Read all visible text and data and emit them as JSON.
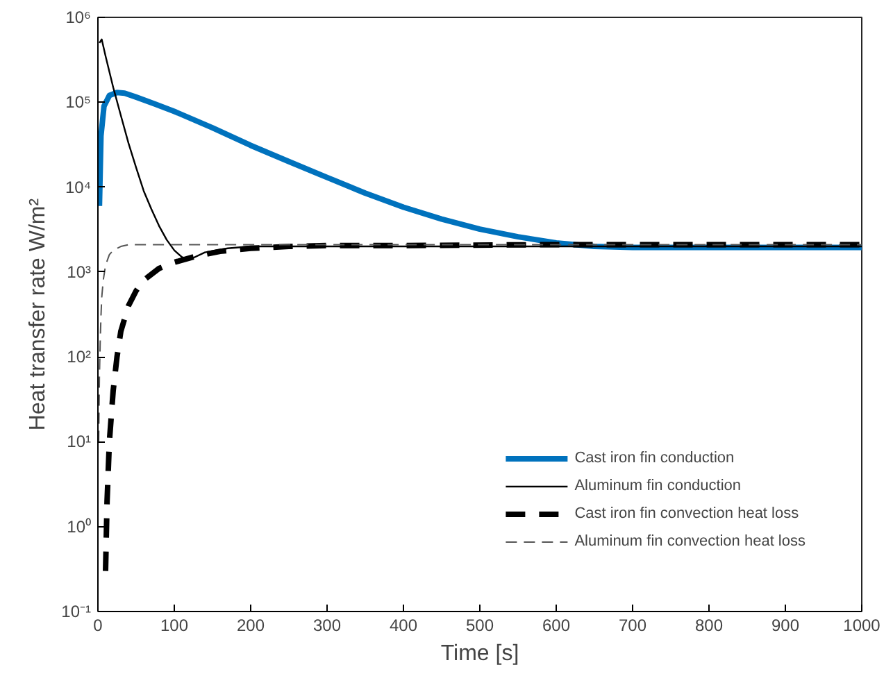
{
  "chart_data": {
    "type": "line",
    "xlabel": "Time [s]",
    "ylabel": "Heat transfer rate W/m²",
    "log": "y",
    "grid": false,
    "legend": "bottom right",
    "xlim": [
      0,
      1000
    ],
    "xticks": [
      0,
      100,
      200,
      300,
      400,
      500,
      600,
      700,
      800,
      900,
      1000
    ],
    "ylim": [
      0.1,
      1000000
    ],
    "yticks": [
      {
        "value": 0.1,
        "label": "10⁻¹"
      },
      {
        "value": 1,
        "label": "10⁰"
      },
      {
        "value": 10,
        "label": "10¹"
      },
      {
        "value": 100,
        "label": "10²"
      },
      {
        "value": 1000,
        "label": "10³"
      },
      {
        "value": 10000,
        "label": "10⁴"
      },
      {
        "value": 100000,
        "label": "10⁵"
      },
      {
        "value": 1000000,
        "label": "10⁶"
      }
    ],
    "series": [
      {
        "name": "Cast iron fin conduction",
        "color": "#0072bd",
        "line_style": "solid",
        "x": [
          2,
          4,
          8,
          15,
          25,
          35,
          50,
          75,
          100,
          150,
          200,
          250,
          300,
          350,
          400,
          450,
          500,
          550,
          600,
          650,
          700,
          800,
          900,
          1000
        ],
        "values": [
          6000,
          40000,
          90000,
          120000,
          130000,
          128000,
          115000,
          95000,
          78000,
          50000,
          31000,
          20000,
          13000,
          8500,
          5800,
          4200,
          3200,
          2600,
          2200,
          2000,
          1950,
          1950,
          1950,
          1950
        ]
      },
      {
        "name": "Aluminum fin conduction",
        "color": "#000000",
        "line_style": "solid",
        "x": [
          2,
          5,
          10,
          20,
          30,
          40,
          50,
          60,
          70,
          80,
          90,
          100,
          110,
          120,
          140,
          170,
          200,
          300,
          500,
          1000
        ],
        "values": [
          500000,
          550000,
          350000,
          150000,
          70000,
          33000,
          17000,
          9000,
          5500,
          3500,
          2400,
          1800,
          1500,
          1400,
          1700,
          1900,
          2000,
          2000,
          2000,
          2000
        ]
      },
      {
        "name": "Cast iron fin convection heat loss",
        "color": "#000000",
        "line_style": "dashed",
        "x": [
          10,
          12,
          15,
          20,
          25,
          30,
          40,
          50,
          60,
          80,
          100,
          130,
          160,
          200,
          250,
          300,
          400,
          600,
          1000
        ],
        "values": [
          0.3,
          2,
          10,
          40,
          100,
          200,
          400,
          600,
          800,
          1100,
          1300,
          1550,
          1750,
          1900,
          2000,
          2050,
          2050,
          2100,
          2100
        ]
      },
      {
        "name": "Aluminum fin convection heat loss",
        "color": "#555555",
        "line_style": "dashed",
        "x": [
          1,
          2,
          3,
          4,
          5,
          7,
          10,
          15,
          20,
          30,
          40,
          60,
          100,
          200,
          500,
          1000
        ],
        "values": [
          10,
          60,
          150,
          300,
          500,
          800,
          1200,
          1600,
          1800,
          2000,
          2100,
          2100,
          2100,
          2100,
          2100,
          2100
        ]
      }
    ]
  }
}
